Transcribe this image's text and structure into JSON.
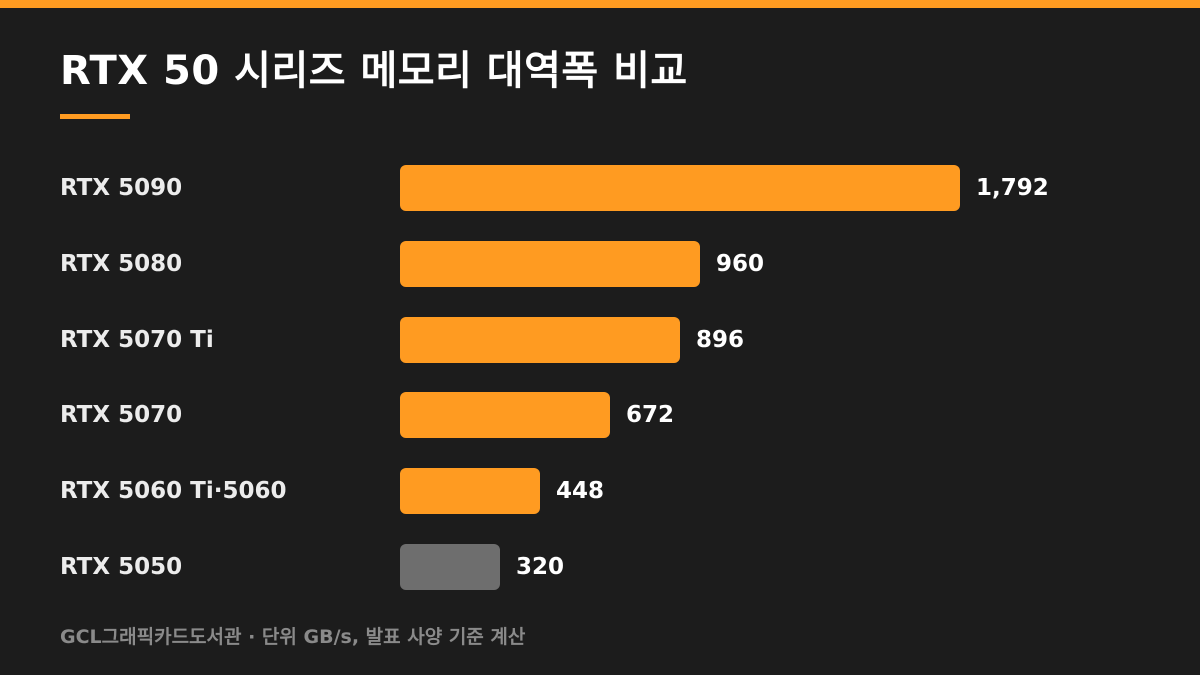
{
  "title": "RTX 50 시리즈 메모리 대역폭 비교",
  "footnote": "GCL그래픽카드도서관 · 단위 GB/s, 발표 사양 기준 계산",
  "colors": {
    "background": "#1c1c1c",
    "accent": "#ff9b21",
    "muted_bar": "#6e6e6e"
  },
  "chart_data": {
    "type": "bar",
    "orientation": "horizontal",
    "unit": "GB/s",
    "categories": [
      "RTX 5090",
      "RTX 5080",
      "RTX 5070 Ti",
      "RTX 5070",
      "RTX 5060 Ti·5060",
      "RTX 5050"
    ],
    "values": [
      1792,
      960,
      896,
      672,
      448,
      320
    ],
    "value_labels": [
      "1,792",
      "960",
      "896",
      "672",
      "448",
      "320"
    ],
    "bar_colors": [
      "#ff9b21",
      "#ff9b21",
      "#ff9b21",
      "#ff9b21",
      "#ff9b21",
      "#6e6e6e"
    ],
    "xlim": [
      0,
      1792
    ],
    "grid": false,
    "legend": false
  }
}
